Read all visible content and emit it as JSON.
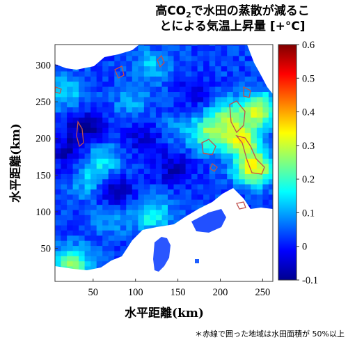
{
  "chart_data": {
    "type": "heatmap",
    "title": {
      "line1_prefix": "高CO",
      "line1_sub": "2",
      "line1_suffix": "で水田の蒸散が減るこ",
      "line2": "とによる気温上昇量 [+°C]"
    },
    "xlabel": "水平距離(km)",
    "ylabel": "水平距離(km)",
    "xlim": [
      5,
      262
    ],
    "ylim": [
      5,
      328
    ],
    "xticks": [
      50,
      100,
      150,
      200,
      250
    ],
    "yticks": [
      50,
      100,
      150,
      200,
      250,
      300
    ],
    "colorbar": {
      "min": -0.1,
      "max": 0.6,
      "ticks": [
        "0.6",
        "0.5",
        "0.4",
        "0.3",
        "0.2",
        "0.1",
        "0",
        "-0.1"
      ],
      "colormap": "jet"
    },
    "contour_label": "水田面積 50%以上",
    "contour_color": "#c0504d",
    "background_value": 0.03,
    "hotspots": [
      {
        "x": 225,
        "y": 200,
        "value": 0.3
      },
      {
        "x": 240,
        "y": 160,
        "value": 0.35
      },
      {
        "x": 245,
        "y": 240,
        "value": 0.3
      },
      {
        "x": 205,
        "y": 230,
        "value": 0.2
      },
      {
        "x": 185,
        "y": 205,
        "value": 0.22
      },
      {
        "x": 60,
        "y": 170,
        "value": 0.15
      },
      {
        "x": 45,
        "y": 140,
        "value": 0.12
      },
      {
        "x": 120,
        "y": 300,
        "value": 0.12
      },
      {
        "x": 95,
        "y": 250,
        "value": 0.1
      },
      {
        "x": 15,
        "y": 265,
        "value": 0.15
      },
      {
        "x": 25,
        "y": 30,
        "value": 0.25
      },
      {
        "x": 120,
        "y": 95,
        "value": 0.18
      },
      {
        "x": 150,
        "y": 215,
        "value": 0.08
      },
      {
        "x": 70,
        "y": 90,
        "value": 0.09
      }
    ],
    "coldspots": [
      {
        "x": 40,
        "y": 215,
        "value": -0.08
      },
      {
        "x": 20,
        "y": 180,
        "value": -0.06
      },
      {
        "x": 75,
        "y": 130,
        "value": -0.07
      },
      {
        "x": 145,
        "y": 160,
        "value": -0.05
      },
      {
        "x": 110,
        "y": 200,
        "value": -0.04
      },
      {
        "x": 130,
        "y": 50,
        "value": -0.06
      },
      {
        "x": 170,
        "y": 260,
        "value": -0.03
      },
      {
        "x": 230,
        "y": 85,
        "value": -0.04
      }
    ]
  },
  "footnote": "＊赤線で囲った地域は水田面積が 50%以上"
}
